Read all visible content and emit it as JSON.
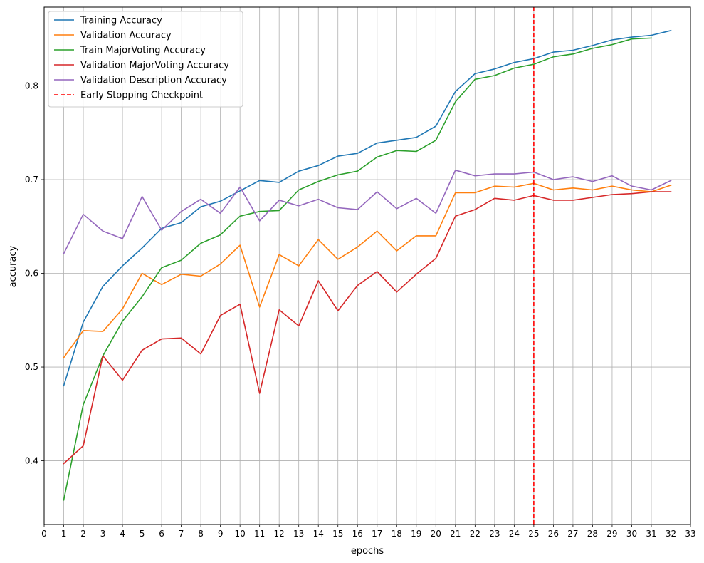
{
  "chart_data": {
    "type": "line",
    "xlabel": "epochs",
    "ylabel": "accuracy",
    "xlim": [
      0,
      33
    ],
    "ylim": [
      0.332,
      0.884
    ],
    "grid": true,
    "legend_position": "top-left",
    "x_ticks": [
      0,
      1,
      2,
      3,
      4,
      5,
      6,
      7,
      8,
      9,
      10,
      11,
      12,
      13,
      14,
      15,
      16,
      17,
      18,
      19,
      20,
      21,
      22,
      23,
      24,
      25,
      26,
      27,
      28,
      29,
      30,
      31,
      32,
      33
    ],
    "y_ticks": [
      0.4,
      0.5,
      0.6,
      0.7,
      0.8
    ],
    "y_tick_labels": [
      "0.4",
      "0.5",
      "0.6",
      "0.7",
      "0.8"
    ],
    "series": [
      {
        "name": "Training Accuracy",
        "color": "#1f77b4",
        "x": [
          1,
          2,
          3,
          4,
          5,
          6,
          7,
          8,
          9,
          10,
          11,
          12,
          13,
          14,
          15,
          16,
          17,
          18,
          19,
          20,
          21,
          22,
          23,
          24,
          25,
          26,
          27,
          28,
          29,
          30,
          31,
          32
        ],
        "values": [
          0.48,
          0.548,
          0.586,
          0.608,
          0.627,
          0.648,
          0.654,
          0.671,
          0.677,
          0.688,
          0.699,
          0.697,
          0.709,
          0.715,
          0.725,
          0.728,
          0.739,
          0.742,
          0.745,
          0.757,
          0.794,
          0.813,
          0.818,
          0.825,
          0.829,
          0.836,
          0.838,
          0.843,
          0.849,
          0.852,
          0.854,
          0.859
        ]
      },
      {
        "name": "Validation Accuracy",
        "color": "#ff7f0e",
        "x": [
          1,
          2,
          3,
          4,
          5,
          6,
          7,
          8,
          9,
          10,
          11,
          12,
          13,
          14,
          15,
          16,
          17,
          18,
          19,
          20,
          21,
          22,
          23,
          24,
          25,
          26,
          27,
          28,
          29,
          30,
          31,
          32
        ],
        "values": [
          0.51,
          0.539,
          0.538,
          0.562,
          0.6,
          0.588,
          0.599,
          0.597,
          0.61,
          0.63,
          0.564,
          0.62,
          0.608,
          0.636,
          0.615,
          0.628,
          0.645,
          0.624,
          0.64,
          0.64,
          0.686,
          0.686,
          0.693,
          0.692,
          0.696,
          0.689,
          0.691,
          0.689,
          0.693,
          0.689,
          0.687,
          0.694
        ]
      },
      {
        "name": "Train MajorVoting Accuracy",
        "color": "#2ca02c",
        "x": [
          1,
          2,
          3,
          4,
          5,
          6,
          7,
          8,
          9,
          10,
          11,
          12,
          13,
          14,
          15,
          16,
          17,
          18,
          19,
          20,
          21,
          22,
          23,
          24,
          25,
          26,
          27,
          28,
          29,
          30,
          31
        ],
        "values": [
          0.358,
          0.46,
          0.512,
          0.549,
          0.575,
          0.606,
          0.614,
          0.632,
          0.641,
          0.661,
          0.666,
          0.667,
          0.689,
          0.698,
          0.705,
          0.709,
          0.724,
          0.731,
          0.73,
          0.742,
          0.783,
          0.807,
          0.811,
          0.819,
          0.823,
          0.831,
          0.834,
          0.84,
          0.844,
          0.85,
          0.851
        ]
      },
      {
        "name": "Validation MajorVoting Accuracy",
        "color": "#d62728",
        "x": [
          1,
          2,
          3,
          4,
          5,
          6,
          7,
          8,
          9,
          10,
          11,
          12,
          13,
          14,
          15,
          16,
          17,
          18,
          19,
          20,
          21,
          22,
          23,
          24,
          25,
          26,
          27,
          28,
          29,
          30,
          31,
          32
        ],
        "values": [
          0.397,
          0.416,
          0.512,
          0.486,
          0.518,
          0.53,
          0.531,
          0.514,
          0.555,
          0.567,
          0.472,
          0.561,
          0.544,
          0.592,
          0.56,
          0.587,
          0.602,
          0.58,
          0.599,
          0.616,
          0.661,
          0.668,
          0.68,
          0.678,
          0.683,
          0.678,
          0.678,
          0.681,
          0.684,
          0.685,
          0.687,
          0.687
        ]
      },
      {
        "name": "Validation Description Accuracy",
        "color": "#9467bd",
        "x": [
          1,
          2,
          3,
          4,
          5,
          6,
          7,
          8,
          9,
          10,
          11,
          12,
          13,
          14,
          15,
          16,
          17,
          18,
          19,
          20,
          21,
          22,
          23,
          24,
          25,
          26,
          27,
          28,
          29,
          30,
          31,
          32
        ],
        "values": [
          0.621,
          0.663,
          0.645,
          0.637,
          0.682,
          0.646,
          0.666,
          0.679,
          0.664,
          0.692,
          0.656,
          0.678,
          0.672,
          0.679,
          0.67,
          0.668,
          0.687,
          0.669,
          0.68,
          0.664,
          0.71,
          0.704,
          0.706,
          0.706,
          0.708,
          0.7,
          0.703,
          0.698,
          0.704,
          0.693,
          0.689,
          0.699
        ]
      }
    ],
    "vlines": [
      {
        "name": "Early Stopping Checkpoint",
        "x": 25,
        "color": "#ff0000",
        "style": "dashed"
      }
    ]
  }
}
